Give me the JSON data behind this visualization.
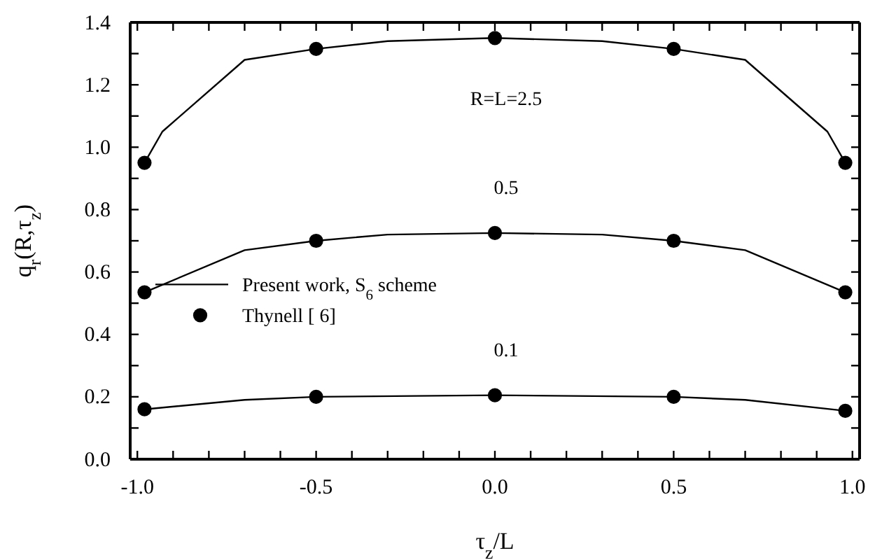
{
  "chart_data": {
    "type": "line",
    "xlabel": "τ$_{z}$/L",
    "ylabel": "q$_{r}$(R,τ$_{z}$)",
    "xlim": [
      -1.02,
      1.02
    ],
    "ylim": [
      0,
      1.4
    ],
    "xticks": [
      {
        "value": -1,
        "label": "-1.0"
      },
      {
        "value": -0.9,
        "label": null
      },
      {
        "value": -0.8,
        "label": null
      },
      {
        "value": -0.7,
        "label": null
      },
      {
        "value": -0.6,
        "label": null
      },
      {
        "value": -0.5,
        "label": "-0.5"
      },
      {
        "value": -0.4,
        "label": null
      },
      {
        "value": -0.3,
        "label": null
      },
      {
        "value": -0.2,
        "label": null
      },
      {
        "value": -0.1,
        "label": null
      },
      {
        "value": 0,
        "label": "0.0"
      },
      {
        "value": 0.1,
        "label": null
      },
      {
        "value": 0.2,
        "label": null
      },
      {
        "value": 0.3,
        "label": null
      },
      {
        "value": 0.4,
        "label": null
      },
      {
        "value": 0.5,
        "label": "0.5"
      },
      {
        "value": 0.6,
        "label": null
      },
      {
        "value": 0.7,
        "label": null
      },
      {
        "value": 0.8,
        "label": null
      },
      {
        "value": 0.9,
        "label": null
      },
      {
        "value": 1,
        "label": "1.0"
      }
    ],
    "yticks": [
      {
        "value": 0,
        "label": "0.0"
      },
      {
        "value": 0.1,
        "label": null
      },
      {
        "value": 0.2,
        "label": "0.2"
      },
      {
        "value": 0.3,
        "label": null
      },
      {
        "value": 0.4,
        "label": "0.4"
      },
      {
        "value": 0.5,
        "label": null
      },
      {
        "value": 0.6,
        "label": "0.6"
      },
      {
        "value": 0.7,
        "label": null
      },
      {
        "value": 0.8,
        "label": "0.8"
      },
      {
        "value": 0.9,
        "label": null
      },
      {
        "value": 1,
        "label": "1.0"
      },
      {
        "value": 1.1,
        "label": null
      },
      {
        "value": 1.2,
        "label": "1.2"
      },
      {
        "value": 1.3,
        "label": null
      },
      {
        "value": 1.4,
        "label": "1.4"
      }
    ],
    "grid": false,
    "legend": "left",
    "series": [
      {
        "type": "line",
        "name": "Present work, S$_{6}$ scheme",
        "color": "#000000",
        "marker": "none",
        "x": [
          -0.98,
          -0.93,
          -0.7,
          -0.5,
          -0.3,
          0,
          0.3,
          0.5,
          0.7,
          0.93,
          0.98
        ],
        "values": [
          0.95,
          1.05,
          1.28,
          1.315,
          1.34,
          1.35,
          1.34,
          1.315,
          1.28,
          1.05,
          0.95
        ]
      },
      {
        "type": "scatter",
        "name": "Thynell [ 6]",
        "color": "#000000",
        "marker": "circle",
        "x": [
          -0.98,
          -0.5,
          0,
          0.5,
          0.98
        ],
        "values": [
          0.95,
          1.315,
          1.35,
          1.315,
          0.95
        ]
      },
      {
        "type": "line",
        "color": "#000000",
        "marker": "none",
        "x": [
          -0.98,
          -0.7,
          -0.5,
          -0.3,
          0,
          0.3,
          0.5,
          0.7,
          0.98
        ],
        "values": [
          0.535,
          0.67,
          0.7,
          0.72,
          0.725,
          0.72,
          0.7,
          0.67,
          0.535
        ]
      },
      {
        "type": "scatter",
        "color": "#000000",
        "marker": "circle",
        "x": [
          -0.98,
          -0.5,
          0,
          0.5,
          0.98
        ],
        "values": [
          0.535,
          0.7,
          0.725,
          0.7,
          0.535
        ]
      },
      {
        "type": "line",
        "color": "#000000",
        "marker": "none",
        "x": [
          -0.98,
          -0.7,
          -0.5,
          0,
          0.5,
          0.7,
          0.98
        ],
        "values": [
          0.16,
          0.19,
          0.2,
          0.205,
          0.2,
          0.19,
          0.155
        ]
      },
      {
        "type": "scatter",
        "color": "#000000",
        "marker": "circle",
        "x": [
          -0.98,
          -0.5,
          0,
          0.5,
          0.98
        ],
        "values": [
          0.16,
          0.2,
          0.205,
          0.2,
          0.155
        ]
      }
    ],
    "annotations": [
      "R=L=2.5",
      "0.5",
      "0.1"
    ]
  }
}
